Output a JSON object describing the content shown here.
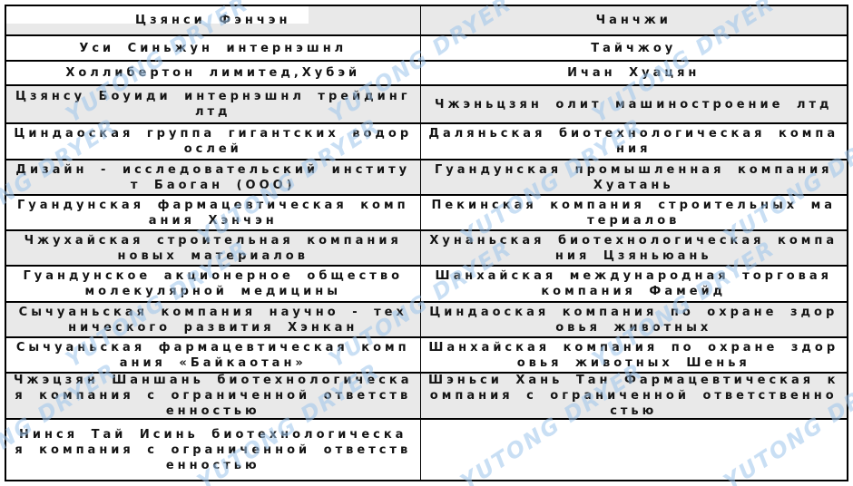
{
  "page": {
    "background": "#ffffff"
  },
  "watermark": {
    "text": "YUTONG DRYER",
    "color": "#9ec5ec"
  },
  "table": {
    "border_color": "#000000",
    "shaded_row_color": "#e9e9e9",
    "rows": [
      {
        "left": "Цзянси Фэнчэн",
        "right": "Чанчжи",
        "shaded": true
      },
      {
        "left": "Уси Синьжун интернэшнл",
        "right": "Тайчжоу",
        "shaded": false
      },
      {
        "left": "Холлибертон лимитед,Хубэй",
        "right": "Ичан Хуацян",
        "shaded": false
      },
      {
        "left": "Цзянсу Боуиди интернэшнл трейдинг лтд",
        "right": "Чжэньцзян олит машиностроение лтд",
        "shaded": true
      },
      {
        "left": "Циндаоская группа гигантских водорослей",
        "right": "Даляньская биотехнологическая компания",
        "shaded": false
      },
      {
        "left": "Дизайн - исследовательский институт Баоган (ООО)",
        "right": "Гуандунская промышленная компания Хуатань",
        "shaded": true
      },
      {
        "left": "Гуандунская фармацевтическая компания Хэнчэн",
        "right": "Пекинская компания строительных материалов",
        "shaded": false
      },
      {
        "left": "Чжухайская строительная компания новых материалов",
        "right": "Хунаньская биотехнологическая компания Цзяньюань",
        "shaded": true
      },
      {
        "left": "Гуандунское акционерное общество молекулярной медицины",
        "right": "Шанхайская международная торговая компания Фамейд",
        "shaded": false
      },
      {
        "left": "Сычуаньская компания научно - технического развития Хэнкан",
        "right": "Циндаоская компания по охране здоровья животных",
        "shaded": true
      },
      {
        "left": "Сычуаньская фармацевтическая компания «Байкаотан»",
        "right": "Шанхайская компания по охране здоровья животных Шенья",
        "shaded": false
      },
      {
        "left": "Чжэцзян Шаншань биотехнологическая компания с ограниченной ответственностью",
        "right": "Шэньси Хань Тан Фармацевтическая компания с ограниченной ответственностью",
        "shaded": true
      },
      {
        "left": "Нинся Тай Исинь биотехнологическая компания с ограниченной ответственностью",
        "right": "",
        "shaded": false
      }
    ]
  }
}
